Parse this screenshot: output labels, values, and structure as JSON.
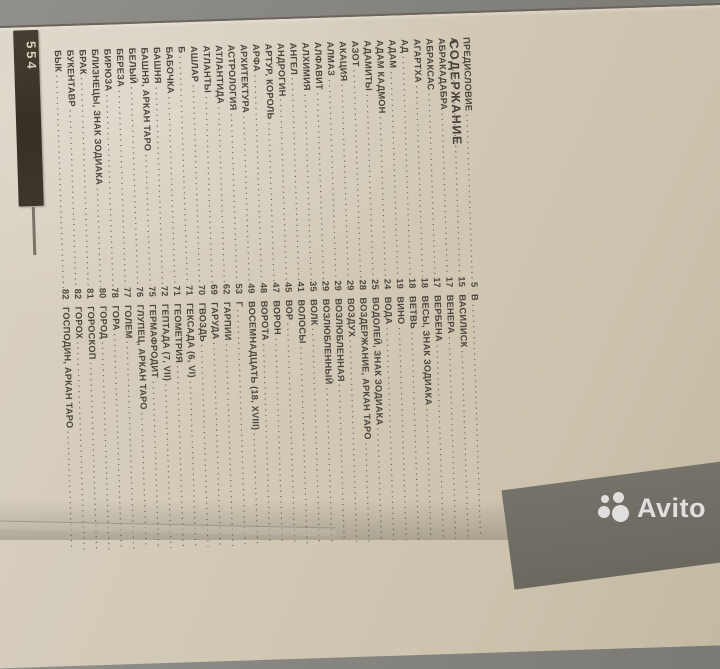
{
  "page_label": "554",
  "header": {
    "title": "СОДЕРЖАНИЕ"
  },
  "watermark": {
    "brand": "Avito"
  },
  "colors": {
    "paper": "#d3cab8",
    "ink": "#4c463e",
    "tab_background": "#3b3328",
    "tab_text": "#d9d0bd",
    "table_surface": "#86847e"
  },
  "toc": {
    "lines": [
      {
        "left": {
          "title": "ПРЕДИСЛОВИЕ",
          "page": "5"
        },
        "right": {
          "title": "В"
        }
      },
      {
        "left": {
          "title": "А",
          "page": "15"
        },
        "right": {
          "title": "ВАСИЛИСК"
        }
      },
      {
        "left": {
          "title": "АБРАКАДАБРА",
          "page": "17"
        },
        "right": {
          "title": "ВЕНЕРА"
        }
      },
      {
        "left": {
          "title": "АБРАКСАС",
          "page": "17"
        },
        "right": {
          "title": "ВЕРБЕНА"
        }
      },
      {
        "left": {
          "title": "АГАРТХА",
          "page": "18"
        },
        "right": {
          "title": "ВЕСЫ, ЗНАК ЗОДИАКА"
        }
      },
      {
        "left": {
          "title": "АД",
          "page": "18"
        },
        "right": {
          "title": "ВЕТВЬ"
        }
      },
      {
        "left": {
          "title": "АДАМ",
          "page": "19"
        },
        "right": {
          "title": "ВИНО"
        }
      },
      {
        "left": {
          "title": "АДАМ КАДМОН",
          "page": "24"
        },
        "right": {
          "title": "ВОДА"
        }
      },
      {
        "left": {
          "title": "АДАМИТЫ",
          "page": "25"
        },
        "right": {
          "title": "ВОДОЛЕЙ, ЗНАК ЗОДИАКА"
        }
      },
      {
        "left": {
          "title": "АЗОТ",
          "page": "28"
        },
        "right": {
          "title": "ВОЗДЕРЖАНИЕ, АРКАН ТАРО"
        }
      },
      {
        "left": {
          "title": "АКАЦИЯ",
          "page": "29"
        },
        "right": {
          "title": "ВОЗДУХ"
        }
      },
      {
        "left": {
          "title": "АЛМАЗ",
          "page": "29"
        },
        "right": {
          "title": "ВОЗЛЮБЛЕННАЯ"
        }
      },
      {
        "left": {
          "title": "АЛФАВИТ",
          "page": "29"
        },
        "right": {
          "title": "ВОЗЛЮБЛЕННЫЙ"
        }
      },
      {
        "left": {
          "title": "АЛХИМИЯ",
          "page": "35"
        },
        "right": {
          "title": "ВОЛК"
        }
      },
      {
        "left": {
          "title": "АНГЕЛ",
          "page": "41"
        },
        "right": {
          "title": "ВОЛОСЫ"
        }
      },
      {
        "left": {
          "title": "АНДРОГИН",
          "page": "45"
        },
        "right": {
          "title": "ВОР"
        }
      },
      {
        "left": {
          "title": "АРТУР, КОРОЛЬ",
          "page": "47"
        },
        "right": {
          "title": "ВОРОН"
        }
      },
      {
        "left": {
          "title": "АРФА",
          "page": "48"
        },
        "right": {
          "title": "ВОРОТА"
        }
      },
      {
        "left": {
          "title": "АРХИТЕКТУРА",
          "page": "49"
        },
        "right": {
          "title": "ВОСЕМНАДЦАТЬ (18, XVIII)"
        }
      },
      {
        "left": {
          "title": "АСТРОЛОГИЯ",
          "page": "53"
        },
        "right": {
          "title": "Г"
        }
      },
      {
        "left": {
          "title": "АТЛАНТИДА",
          "page": "62"
        },
        "right": {
          "title": "ГАРПИИ"
        }
      },
      {
        "left": {
          "title": "АТЛАНТЫ",
          "page": "69"
        },
        "right": {
          "title": "ГАРУДА"
        }
      },
      {
        "left": {
          "title": "АШЛАР",
          "page": "70"
        },
        "right": {
          "title": "ГВОЗДЬ"
        }
      },
      {
        "left": {
          "title": "Б",
          "page": "71"
        },
        "right": {
          "title": "ГЕКСАДА (6, VI)"
        }
      },
      {
        "left": {
          "title": "БАБОЧКА",
          "page": "71"
        },
        "right": {
          "title": "ГЕОМЕТРИЯ"
        }
      },
      {
        "left": {
          "title": "БАШНЯ",
          "page": "72"
        },
        "right": {
          "title": "ГЕПТАДА (7, VII)"
        }
      },
      {
        "left": {
          "title": "БАШНЯ, АРКАН ТАРО",
          "page": "75"
        },
        "right": {
          "title": "ГЕРМАФРОДИТ"
        }
      },
      {
        "left": {
          "title": "БЕЛЫЙ",
          "page": "76"
        },
        "right": {
          "title": "ГЛУПЕЦ, АРКАН ТАРО"
        }
      },
      {
        "left": {
          "title": "БЕРЕЗА",
          "page": "77"
        },
        "right": {
          "title": "ГОЛЕМ"
        }
      },
      {
        "left": {
          "title": "БИРЮЗА",
          "page": "78"
        },
        "right": {
          "title": "ГОРА"
        }
      },
      {
        "left": {
          "title": "БЛИЗНЕЦЫ, ЗНАК ЗОДИАКА",
          "page": "80"
        },
        "right": {
          "title": "ГОРОД"
        }
      },
      {
        "left": {
          "title": "БРАК",
          "page": "81"
        },
        "right": {
          "title": "ГОРОСКОП"
        }
      },
      {
        "left": {
          "title": "БУКЕНТАВР",
          "page": "82"
        },
        "right": {
          "title": "ГОРОХ"
        }
      },
      {
        "left": {
          "title": "БЫК",
          "page": "82"
        },
        "right": {
          "title": "ГОСПОДИН, АРКАН ТАРО"
        }
      }
    ]
  }
}
